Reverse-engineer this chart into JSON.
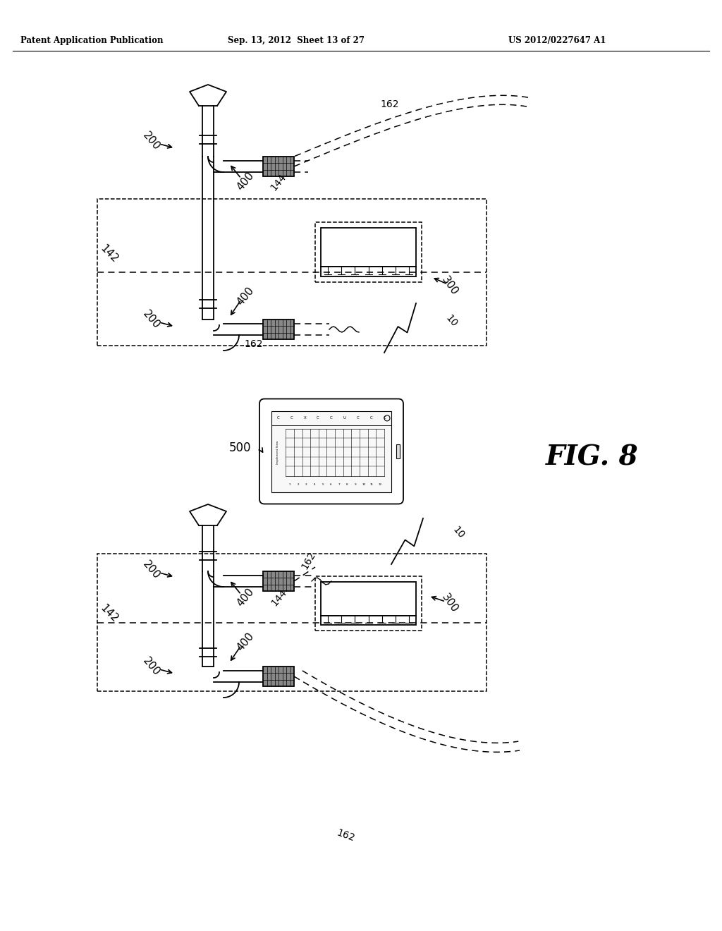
{
  "bg_color": "#ffffff",
  "header_left": "Patent Application Publication",
  "header_center": "Sep. 13, 2012  Sheet 13 of 27",
  "header_right": "US 2012/0227647 A1"
}
